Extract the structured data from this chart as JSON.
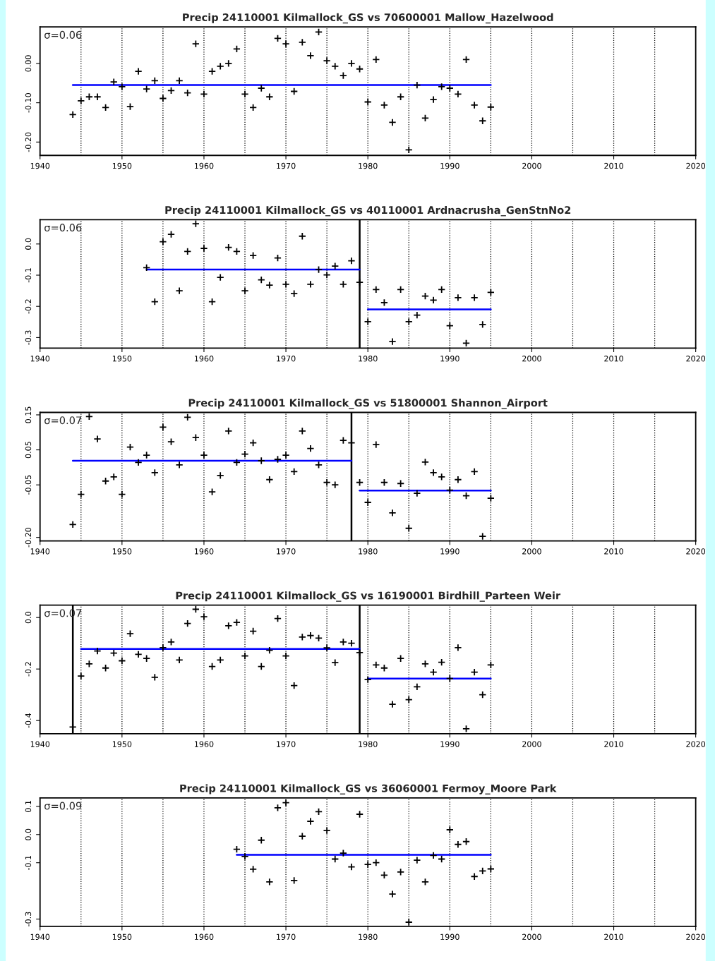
{
  "chart_data": [
    {
      "type": "scatter",
      "title": "Precip 24110001 Kilmallock_GS vs 70600001 Mallow_Hazelwood",
      "annotations": [
        "σ=0.06"
      ],
      "grid": false,
      "xlim": [
        1940,
        2020
      ],
      "xticks": [
        1940,
        1950,
        1960,
        1970,
        1980,
        1990,
        2000,
        2010,
        2020
      ],
      "ylim": [
        -0.234,
        0.093
      ],
      "yticks": [
        {
          "value": 0,
          "label": "0.00"
        },
        {
          "value": -0.1,
          "label": "-0.10"
        },
        {
          "value": -0.2,
          "label": "-0.20"
        }
      ],
      "ref_lines": [
        {
          "axis": "x",
          "value": 1945,
          "color": "#000000",
          "line_style": "dotted"
        },
        {
          "axis": "x",
          "value": 1950,
          "color": "#000000",
          "line_style": "dotted"
        },
        {
          "axis": "x",
          "value": 1955,
          "color": "#000000",
          "line_style": "dotted"
        },
        {
          "axis": "x",
          "value": 1960,
          "color": "#000000",
          "line_style": "dotted"
        },
        {
          "axis": "x",
          "value": 1965,
          "color": "#000000",
          "line_style": "dotted"
        },
        {
          "axis": "x",
          "value": 1970,
          "color": "#000000",
          "line_style": "dotted"
        },
        {
          "axis": "x",
          "value": 1975,
          "color": "#000000",
          "line_style": "dotted"
        },
        {
          "axis": "x",
          "value": 1980,
          "color": "#000000",
          "line_style": "dotted"
        },
        {
          "axis": "x",
          "value": 1985,
          "color": "#000000",
          "line_style": "dotted"
        },
        {
          "axis": "x",
          "value": 1990,
          "color": "#000000",
          "line_style": "dotted"
        },
        {
          "axis": "x",
          "value": 1995,
          "color": "#000000",
          "line_style": "dotted"
        },
        {
          "axis": "x",
          "value": 2000,
          "color": "#000000",
          "line_style": "dotted"
        },
        {
          "axis": "x",
          "value": 2005,
          "color": "#000000",
          "line_style": "dotted"
        },
        {
          "axis": "x",
          "value": 2010,
          "color": "#000000",
          "line_style": "dotted"
        },
        {
          "axis": "x",
          "value": 2015,
          "color": "#000000",
          "line_style": "dotted"
        }
      ],
      "series": [
        {
          "marker": "cross",
          "color": "#000000",
          "x": [
            1944,
            1945,
            1946,
            1947,
            1948,
            1949,
            1950,
            1951,
            1952,
            1953,
            1954,
            1955,
            1956,
            1957,
            1958,
            1959,
            1960,
            1961,
            1962,
            1963,
            1964,
            1965,
            1966,
            1967,
            1968,
            1969,
            1970,
            1971,
            1972,
            1973,
            1974,
            1975,
            1976,
            1977,
            1978,
            1979,
            1980,
            1981,
            1982,
            1983,
            1984,
            1985,
            1986,
            1987,
            1988,
            1989,
            1990,
            1991,
            1992,
            1993,
            1994,
            1995
          ],
          "values": [
            -0.13,
            -0.095,
            -0.085,
            -0.085,
            -0.112,
            -0.047,
            -0.059,
            -0.11,
            -0.02,
            -0.065,
            -0.044,
            -0.089,
            -0.069,
            -0.044,
            -0.075,
            0.05,
            -0.078,
            -0.02,
            -0.007,
            0.0,
            0.037,
            -0.078,
            -0.112,
            -0.063,
            -0.085,
            0.064,
            0.05,
            -0.071,
            0.054,
            0.02,
            0.08,
            0.007,
            -0.007,
            -0.031,
            0.0,
            -0.014,
            -0.098,
            0.01,
            -0.106,
            -0.15,
            -0.085,
            -0.22,
            -0.055,
            -0.139,
            -0.092,
            -0.059,
            -0.063,
            -0.078,
            0.01,
            -0.106,
            -0.146,
            -0.111
          ]
        },
        {
          "type": "line",
          "color": "#0000ff",
          "x": [
            1944,
            1995
          ],
          "values": [
            -0.055,
            -0.055
          ]
        }
      ]
    },
    {
      "type": "scatter",
      "title": "Precip 24110001 Kilmallock_GS vs 40110001 Ardnacrusha_GenStnNo2",
      "annotations": [
        "σ=0.06"
      ],
      "grid": false,
      "xlim": [
        1940,
        2020
      ],
      "xticks": [
        1940,
        1950,
        1960,
        1970,
        1980,
        1990,
        2000,
        2010,
        2020
      ],
      "ylim": [
        -0.334,
        0.078
      ],
      "yticks": [
        {
          "value": 0,
          "label": "0.0"
        },
        -0.1,
        -0.2,
        -0.3
      ],
      "ref_lines": [
        {
          "axis": "x",
          "value": 1945,
          "color": "#000000",
          "line_style": "dotted"
        },
        {
          "axis": "x",
          "value": 1950,
          "color": "#000000",
          "line_style": "dotted"
        },
        {
          "axis": "x",
          "value": 1955,
          "color": "#000000",
          "line_style": "dotted"
        },
        {
          "axis": "x",
          "value": 1960,
          "color": "#000000",
          "line_style": "dotted"
        },
        {
          "axis": "x",
          "value": 1965,
          "color": "#000000",
          "line_style": "dotted"
        },
        {
          "axis": "x",
          "value": 1970,
          "color": "#000000",
          "line_style": "dotted"
        },
        {
          "axis": "x",
          "value": 1975,
          "color": "#000000",
          "line_style": "dotted"
        },
        {
          "axis": "x",
          "value": 1980,
          "color": "#000000",
          "line_style": "dotted"
        },
        {
          "axis": "x",
          "value": 1985,
          "color": "#000000",
          "line_style": "dotted"
        },
        {
          "axis": "x",
          "value": 1990,
          "color": "#000000",
          "line_style": "dotted"
        },
        {
          "axis": "x",
          "value": 1995,
          "color": "#000000",
          "line_style": "dotted"
        },
        {
          "axis": "x",
          "value": 2000,
          "color": "#000000",
          "line_style": "dotted"
        },
        {
          "axis": "x",
          "value": 2005,
          "color": "#000000",
          "line_style": "dotted"
        },
        {
          "axis": "x",
          "value": 2010,
          "color": "#000000",
          "line_style": "dotted"
        },
        {
          "axis": "x",
          "value": 2015,
          "color": "#000000",
          "line_style": "dotted"
        },
        {
          "axis": "x",
          "value": 1979,
          "color": "#000000",
          "line_style": "solid"
        }
      ],
      "series": [
        {
          "marker": "cross",
          "color": "#000000",
          "x": [
            1953,
            1954,
            1955,
            1956,
            1957,
            1958,
            1959,
            1960,
            1961,
            1962,
            1963,
            1964,
            1965,
            1966,
            1967,
            1968,
            1969,
            1970,
            1971,
            1972,
            1973,
            1974,
            1975,
            1976,
            1977,
            1978,
            1979,
            1980,
            1981,
            1982,
            1983,
            1984,
            1985,
            1986,
            1987,
            1988,
            1989,
            1990,
            1991,
            1992,
            1993,
            1994,
            1995
          ],
          "values": [
            -0.076,
            -0.185,
            0.007,
            0.031,
            -0.15,
            -0.024,
            0.065,
            -0.014,
            -0.185,
            -0.107,
            -0.011,
            -0.024,
            -0.15,
            -0.037,
            -0.115,
            -0.132,
            -0.045,
            -0.129,
            -0.159,
            0.025,
            -0.129,
            -0.082,
            -0.099,
            -0.071,
            -0.129,
            -0.054,
            -0.123,
            -0.249,
            -0.146,
            -0.188,
            -0.313,
            -0.146,
            -0.249,
            -0.228,
            -0.167,
            -0.18,
            -0.146,
            -0.262,
            -0.172,
            -0.318,
            -0.172,
            -0.258,
            -0.155
          ]
        },
        {
          "type": "line",
          "color": "#0000ff",
          "x": [
            1953,
            1979
          ],
          "values": [
            -0.082,
            -0.082
          ]
        },
        {
          "type": "line",
          "color": "#0000ff",
          "x": [
            1980,
            1995
          ],
          "values": [
            -0.21,
            -0.21
          ]
        }
      ]
    },
    {
      "type": "scatter",
      "title": "Precip 24110001 Kilmallock_GS vs 51800001 Shannon_Airport",
      "annotations": [
        "σ=0.07"
      ],
      "grid": false,
      "xlim": [
        1940,
        2020
      ],
      "xticks": [
        1940,
        1950,
        1960,
        1970,
        1980,
        1990,
        2000,
        2010,
        2020
      ],
      "ylim": [
        -0.21,
        0.157
      ],
      "yticks": [
        0.15,
        0.05,
        -0.05,
        {
          "value": -0.2,
          "label": "-0.20"
        }
      ],
      "ref_lines": [
        {
          "axis": "x",
          "value": 1945,
          "color": "#000000",
          "line_style": "dotted"
        },
        {
          "axis": "x",
          "value": 1950,
          "color": "#000000",
          "line_style": "dotted"
        },
        {
          "axis": "x",
          "value": 1955,
          "color": "#000000",
          "line_style": "dotted"
        },
        {
          "axis": "x",
          "value": 1960,
          "color": "#000000",
          "line_style": "dotted"
        },
        {
          "axis": "x",
          "value": 1965,
          "color": "#000000",
          "line_style": "dotted"
        },
        {
          "axis": "x",
          "value": 1970,
          "color": "#000000",
          "line_style": "dotted"
        },
        {
          "axis": "x",
          "value": 1975,
          "color": "#000000",
          "line_style": "dotted"
        },
        {
          "axis": "x",
          "value": 1980,
          "color": "#000000",
          "line_style": "dotted"
        },
        {
          "axis": "x",
          "value": 1985,
          "color": "#000000",
          "line_style": "dotted"
        },
        {
          "axis": "x",
          "value": 1990,
          "color": "#000000",
          "line_style": "dotted"
        },
        {
          "axis": "x",
          "value": 1995,
          "color": "#000000",
          "line_style": "dotted"
        },
        {
          "axis": "x",
          "value": 2000,
          "color": "#000000",
          "line_style": "dotted"
        },
        {
          "axis": "x",
          "value": 2005,
          "color": "#000000",
          "line_style": "dotted"
        },
        {
          "axis": "x",
          "value": 2010,
          "color": "#000000",
          "line_style": "dotted"
        },
        {
          "axis": "x",
          "value": 2015,
          "color": "#000000",
          "line_style": "dotted"
        },
        {
          "axis": "x",
          "value": 1978,
          "color": "#000000",
          "line_style": "solid"
        }
      ],
      "series": [
        {
          "marker": "cross",
          "color": "#000000",
          "x": [
            1944,
            1945,
            1946,
            1947,
            1948,
            1949,
            1950,
            1951,
            1952,
            1953,
            1954,
            1955,
            1956,
            1957,
            1958,
            1959,
            1960,
            1961,
            1962,
            1963,
            1964,
            1965,
            1966,
            1967,
            1968,
            1969,
            1970,
            1971,
            1972,
            1973,
            1974,
            1975,
            1976,
            1977,
            1978,
            1979,
            1980,
            1981,
            1982,
            1983,
            1984,
            1985,
            1986,
            1987,
            1988,
            1989,
            1990,
            1991,
            1992,
            1993,
            1994,
            1995
          ],
          "values": [
            -0.163,
            -0.077,
            0.145,
            0.081,
            -0.039,
            -0.027,
            -0.077,
            0.058,
            0.014,
            0.035,
            -0.015,
            0.115,
            0.073,
            0.007,
            0.143,
            0.085,
            0.035,
            -0.07,
            -0.023,
            0.104,
            0.014,
            0.038,
            0.07,
            0.019,
            -0.035,
            0.023,
            0.035,
            -0.012,
            0.104,
            0.054,
            0.007,
            -0.043,
            -0.05,
            0.077,
            0.07,
            -0.043,
            -0.1,
            0.065,
            -0.043,
            -0.13,
            -0.046,
            -0.174,
            -0.074,
            0.015,
            -0.015,
            -0.027,
            -0.065,
            -0.035,
            -0.081,
            -0.012,
            -0.197,
            -0.088
          ]
        },
        {
          "type": "line",
          "color": "#0000ff",
          "x": [
            1944,
            1978
          ],
          "values": [
            0.019,
            0.019
          ]
        },
        {
          "type": "line",
          "color": "#0000ff",
          "x": [
            1979,
            1995
          ],
          "values": [
            -0.066,
            -0.066
          ]
        }
      ]
    },
    {
      "type": "scatter",
      "title": "Precip 24110001 Kilmallock_GS vs 16190001 Birdhill_Parteen Weir",
      "annotations": [
        "σ=0.07"
      ],
      "grid": false,
      "xlim": [
        1940,
        2020
      ],
      "xticks": [
        1940,
        1950,
        1960,
        1970,
        1980,
        1990,
        2000,
        2010,
        2020
      ],
      "ylim": [
        -0.451,
        0.048
      ],
      "yticks": [
        {
          "value": 0,
          "label": "0.0"
        },
        -0.2,
        -0.4
      ],
      "ref_lines": [
        {
          "axis": "x",
          "value": 1945,
          "color": "#000000",
          "line_style": "dotted"
        },
        {
          "axis": "x",
          "value": 1950,
          "color": "#000000",
          "line_style": "dotted"
        },
        {
          "axis": "x",
          "value": 1955,
          "color": "#000000",
          "line_style": "dotted"
        },
        {
          "axis": "x",
          "value": 1960,
          "color": "#000000",
          "line_style": "dotted"
        },
        {
          "axis": "x",
          "value": 1965,
          "color": "#000000",
          "line_style": "dotted"
        },
        {
          "axis": "x",
          "value": 1970,
          "color": "#000000",
          "line_style": "dotted"
        },
        {
          "axis": "x",
          "value": 1975,
          "color": "#000000",
          "line_style": "dotted"
        },
        {
          "axis": "x",
          "value": 1980,
          "color": "#000000",
          "line_style": "dotted"
        },
        {
          "axis": "x",
          "value": 1985,
          "color": "#000000",
          "line_style": "dotted"
        },
        {
          "axis": "x",
          "value": 1990,
          "color": "#000000",
          "line_style": "dotted"
        },
        {
          "axis": "x",
          "value": 1995,
          "color": "#000000",
          "line_style": "dotted"
        },
        {
          "axis": "x",
          "value": 2000,
          "color": "#000000",
          "line_style": "dotted"
        },
        {
          "axis": "x",
          "value": 2005,
          "color": "#000000",
          "line_style": "dotted"
        },
        {
          "axis": "x",
          "value": 2010,
          "color": "#000000",
          "line_style": "dotted"
        },
        {
          "axis": "x",
          "value": 2015,
          "color": "#000000",
          "line_style": "dotted"
        },
        {
          "axis": "x",
          "value": 1944,
          "color": "#000000",
          "line_style": "solid"
        },
        {
          "axis": "x",
          "value": 1979,
          "color": "#000000",
          "line_style": "solid"
        }
      ],
      "series": [
        {
          "marker": "cross",
          "color": "#000000",
          "x": [
            1944,
            1945,
            1946,
            1947,
            1948,
            1949,
            1950,
            1951,
            1952,
            1953,
            1954,
            1955,
            1956,
            1957,
            1958,
            1959,
            1960,
            1961,
            1962,
            1963,
            1964,
            1965,
            1966,
            1967,
            1968,
            1969,
            1970,
            1971,
            1972,
            1973,
            1974,
            1975,
            1976,
            1977,
            1978,
            1979,
            1980,
            1981,
            1982,
            1983,
            1984,
            1985,
            1986,
            1987,
            1988,
            1989,
            1990,
            1991,
            1992,
            1993,
            1994,
            1995
          ],
          "values": [
            -0.425,
            -0.227,
            -0.18,
            -0.13,
            -0.196,
            -0.138,
            -0.168,
            -0.063,
            -0.143,
            -0.159,
            -0.232,
            -0.117,
            -0.095,
            -0.165,
            -0.023,
            0.032,
            0.003,
            -0.19,
            -0.165,
            -0.032,
            -0.019,
            -0.149,
            -0.053,
            -0.19,
            -0.127,
            -0.004,
            -0.149,
            -0.264,
            -0.076,
            -0.07,
            -0.08,
            -0.118,
            -0.175,
            -0.095,
            -0.1,
            -0.136,
            -0.241,
            -0.184,
            -0.196,
            -0.337,
            -0.159,
            -0.319,
            -0.269,
            -0.18,
            -0.212,
            -0.174,
            -0.237,
            -0.117,
            -0.432,
            -0.212,
            -0.3,
            -0.184
          ]
        },
        {
          "type": "line",
          "color": "#0000ff",
          "x": [
            1945,
            1979
          ],
          "values": [
            -0.122,
            -0.122
          ]
        },
        {
          "type": "line",
          "color": "#0000ff",
          "x": [
            1980,
            1995
          ],
          "values": [
            -0.237,
            -0.237
          ]
        }
      ]
    },
    {
      "type": "scatter",
      "title": "Precip 24110001 Kilmallock_GS vs 36060001 Fermoy_Moore Park",
      "annotations": [
        "σ=0.09"
      ],
      "grid": false,
      "xlim": [
        1940,
        2020
      ],
      "xticks": [
        1940,
        1950,
        1960,
        1970,
        1980,
        1990,
        2000,
        2010,
        2020
      ],
      "ylim": [
        -0.326,
        0.13
      ],
      "yticks": [
        0.1,
        {
          "value": 0,
          "label": "0.0"
        },
        -0.1,
        -0.3
      ],
      "ref_lines": [
        {
          "axis": "x",
          "value": 1945,
          "color": "#000000",
          "line_style": "dotted"
        },
        {
          "axis": "x",
          "value": 1950,
          "color": "#000000",
          "line_style": "dotted"
        },
        {
          "axis": "x",
          "value": 1955,
          "color": "#000000",
          "line_style": "dotted"
        },
        {
          "axis": "x",
          "value": 1960,
          "color": "#000000",
          "line_style": "dotted"
        },
        {
          "axis": "x",
          "value": 1965,
          "color": "#000000",
          "line_style": "dotted"
        },
        {
          "axis": "x",
          "value": 1970,
          "color": "#000000",
          "line_style": "dotted"
        },
        {
          "axis": "x",
          "value": 1975,
          "color": "#000000",
          "line_style": "dotted"
        },
        {
          "axis": "x",
          "value": 1980,
          "color": "#000000",
          "line_style": "dotted"
        },
        {
          "axis": "x",
          "value": 1985,
          "color": "#000000",
          "line_style": "dotted"
        },
        {
          "axis": "x",
          "value": 1990,
          "color": "#000000",
          "line_style": "dotted"
        },
        {
          "axis": "x",
          "value": 1995,
          "color": "#000000",
          "line_style": "dotted"
        },
        {
          "axis": "x",
          "value": 2000,
          "color": "#000000",
          "line_style": "dotted"
        },
        {
          "axis": "x",
          "value": 2005,
          "color": "#000000",
          "line_style": "dotted"
        },
        {
          "axis": "x",
          "value": 2010,
          "color": "#000000",
          "line_style": "dotted"
        },
        {
          "axis": "x",
          "value": 2015,
          "color": "#000000",
          "line_style": "dotted"
        }
      ],
      "series": [
        {
          "marker": "cross",
          "color": "#000000",
          "x": [
            1964,
            1965,
            1966,
            1967,
            1968,
            1969,
            1970,
            1971,
            1972,
            1973,
            1974,
            1975,
            1976,
            1977,
            1978,
            1979,
            1980,
            1981,
            1982,
            1983,
            1984,
            1985,
            1986,
            1987,
            1988,
            1989,
            1990,
            1991,
            1992,
            1993,
            1994,
            1995
          ],
          "values": [
            -0.052,
            -0.078,
            -0.123,
            -0.02,
            -0.168,
            0.095,
            0.113,
            -0.163,
            -0.006,
            0.047,
            0.081,
            0.014,
            -0.087,
            -0.066,
            -0.115,
            0.072,
            -0.106,
            -0.1,
            -0.144,
            -0.211,
            -0.133,
            -0.311,
            -0.091,
            -0.168,
            -0.074,
            -0.087,
            0.017,
            -0.035,
            -0.025,
            -0.149,
            -0.129,
            -0.122
          ]
        },
        {
          "type": "line",
          "color": "#0000ff",
          "x": [
            1964,
            1995
          ],
          "values": [
            -0.072,
            -0.072
          ]
        }
      ]
    }
  ]
}
